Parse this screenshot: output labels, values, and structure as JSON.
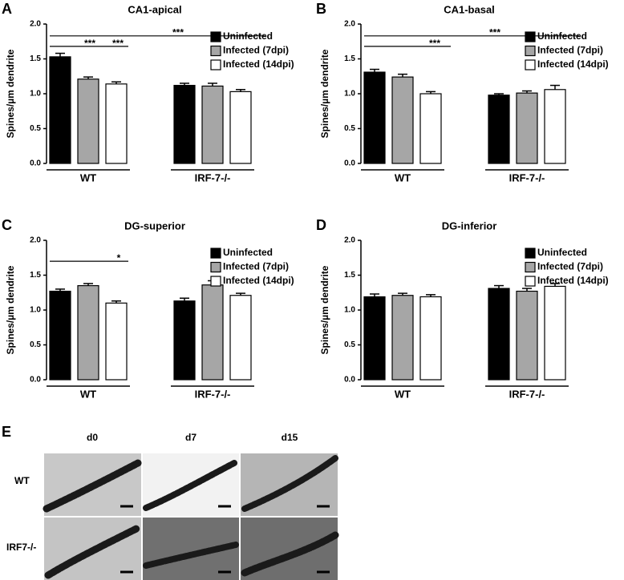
{
  "chart_data": [
    {
      "type": "bar",
      "panel": "A",
      "title": "CA1-apical",
      "ylabel": "Spines/µm dendrite",
      "categories": [
        "WT",
        "IRF-7-/-"
      ],
      "series": [
        {
          "name": "Uninfected",
          "color": "#000000",
          "values": [
            1.53,
            1.12
          ],
          "errors": [
            0.05,
            0.03
          ]
        },
        {
          "name": "Infected (7dpi)",
          "color": "#a6a6a6",
          "values": [
            1.21,
            1.11
          ],
          "errors": [
            0.03,
            0.04
          ]
        },
        {
          "name": "Infected (14dpi)",
          "color": "#ffffff",
          "values": [
            1.14,
            1.03
          ],
          "errors": [
            0.03,
            0.03
          ]
        }
      ],
      "ylim": [
        0,
        2
      ],
      "yticks": [
        {
          "value": 0,
          "label": "0.0"
        },
        {
          "value": 0.5,
          "label": "0.5"
        },
        {
          "value": 1,
          "label": "1.0"
        },
        {
          "value": 1.5,
          "label": "1.5"
        },
        {
          "value": 2,
          "label": "2.0"
        }
      ],
      "annotations": [
        "***",
        "***",
        "***"
      ]
    },
    {
      "type": "bar",
      "panel": "B",
      "title": "CA1-basal",
      "ylabel": "Spines/µm dendrite",
      "categories": [
        "WT",
        "IRF-7-/-"
      ],
      "series": [
        {
          "name": "Uninfected",
          "color": "#000000",
          "values": [
            1.31,
            0.98
          ],
          "errors": [
            0.04,
            0.02
          ]
        },
        {
          "name": "Infected (7dpi)",
          "color": "#a6a6a6",
          "values": [
            1.24,
            1.01
          ],
          "errors": [
            0.04,
            0.03
          ]
        },
        {
          "name": "Infected (14dpi)",
          "color": "#ffffff",
          "values": [
            1.0,
            1.06
          ],
          "errors": [
            0.03,
            0.06
          ]
        }
      ],
      "ylim": [
        0,
        2
      ],
      "yticks": [
        {
          "value": 0,
          "label": "0.0"
        },
        {
          "value": 0.5,
          "label": "0.5"
        },
        {
          "value": 1,
          "label": "1.0"
        },
        {
          "value": 1.5,
          "label": "1.5"
        },
        {
          "value": 2,
          "label": "2.0"
        }
      ],
      "annotations": [
        "***",
        "***"
      ]
    },
    {
      "type": "bar",
      "panel": "C",
      "title": "DG-superior",
      "ylabel": "Spines/µm dendrite",
      "categories": [
        "WT",
        "IRF-7-/-"
      ],
      "series": [
        {
          "name": "Uninfected",
          "color": "#000000",
          "values": [
            1.27,
            1.13
          ],
          "errors": [
            0.03,
            0.04
          ]
        },
        {
          "name": "Infected (7dpi)",
          "color": "#a6a6a6",
          "values": [
            1.35,
            1.36
          ],
          "errors": [
            0.03,
            0.06
          ]
        },
        {
          "name": "Infected (14dpi)",
          "color": "#ffffff",
          "values": [
            1.1,
            1.21
          ],
          "errors": [
            0.03,
            0.03
          ]
        }
      ],
      "ylim": [
        0,
        2
      ],
      "yticks": [
        {
          "value": 0,
          "label": "0.0"
        },
        {
          "value": 0.5,
          "label": "0.5"
        },
        {
          "value": 1,
          "label": "1.0"
        },
        {
          "value": 1.5,
          "label": "1.5"
        },
        {
          "value": 2,
          "label": "2.0"
        }
      ],
      "annotations": [
        "*"
      ]
    },
    {
      "type": "bar",
      "panel": "D",
      "title": "DG-inferior",
      "ylabel": "Spines/µm dendrite",
      "categories": [
        "WT",
        "IRF-7-/-"
      ],
      "series": [
        {
          "name": "Uninfected",
          "color": "#000000",
          "values": [
            1.19,
            1.31
          ],
          "errors": [
            0.04,
            0.04
          ]
        },
        {
          "name": "Infected (7dpi)",
          "color": "#a6a6a6",
          "values": [
            1.21,
            1.27
          ],
          "errors": [
            0.03,
            0.04
          ]
        },
        {
          "name": "Infected (14dpi)",
          "color": "#ffffff",
          "values": [
            1.19,
            1.34
          ],
          "errors": [
            0.03,
            0.04
          ]
        }
      ],
      "ylim": [
        0,
        2
      ],
      "yticks": [
        {
          "value": 0,
          "label": "0.0"
        },
        {
          "value": 0.5,
          "label": "0.5"
        },
        {
          "value": 1,
          "label": "1.0"
        },
        {
          "value": 1.5,
          "label": "1.5"
        },
        {
          "value": 2,
          "label": "2.0"
        }
      ],
      "annotations": []
    }
  ],
  "micrographs": {
    "panel": "E",
    "columns": [
      "d0",
      "d7",
      "d15"
    ],
    "rows": [
      "WT",
      "IRF7-/-"
    ]
  }
}
